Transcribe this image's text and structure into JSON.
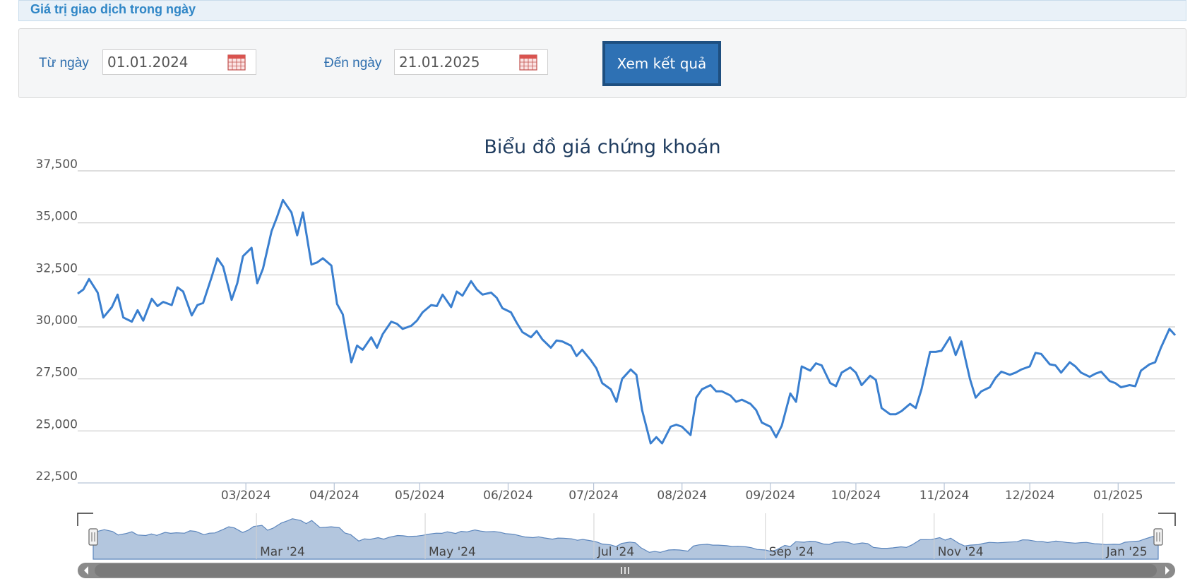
{
  "header": {
    "title": "Giá trị giao dịch trong ngày"
  },
  "filter": {
    "from_label": "Từ ngày",
    "from_value": "01.01.2024",
    "to_label": "Đến ngày",
    "to_value": "21.01.2025",
    "submit_label": "Xem kết quả"
  },
  "colors": {
    "line": "#3a7fcf",
    "navigator_fill": "#b3c6de",
    "accent": "#2e71b4"
  },
  "navigator": {
    "labels": [
      "Mar '24",
      "May '24",
      "Jul '24",
      "Sep '24",
      "Nov '24",
      "Jan '25"
    ]
  },
  "chart_data": {
    "type": "line",
    "title": "Biểu đồ giá chứng khoán",
    "xlabel": "",
    "ylabel": "",
    "ylim": [
      22500,
      37500
    ],
    "xlim": [
      "2024-01-02",
      "2025-01-21"
    ],
    "y_ticks": [
      "22,500",
      "25,000",
      "27,500",
      "30,000",
      "32,500",
      "35,000",
      "37,500"
    ],
    "x_ticks": [
      {
        "date": "2024-03-01",
        "label": "03/2024"
      },
      {
        "date": "2024-04-01",
        "label": "04/2024"
      },
      {
        "date": "2024-05-01",
        "label": "05/2024"
      },
      {
        "date": "2024-06-01",
        "label": "06/2024"
      },
      {
        "date": "2024-07-01",
        "label": "07/2024"
      },
      {
        "date": "2024-08-01",
        "label": "08/2024"
      },
      {
        "date": "2024-09-01",
        "label": "09/2024"
      },
      {
        "date": "2024-10-01",
        "label": "10/2024"
      },
      {
        "date": "2024-11-01",
        "label": "11/2024"
      },
      {
        "date": "2024-12-01",
        "label": "12/2024"
      },
      {
        "date": "2025-01-01",
        "label": "01/2025"
      }
    ],
    "grid": true,
    "legend": "none",
    "x": [
      "2024-01-02",
      "2024-01-04",
      "2024-01-06",
      "2024-01-09",
      "2024-01-11",
      "2024-01-14",
      "2024-01-16",
      "2024-01-18",
      "2024-01-21",
      "2024-01-23",
      "2024-01-25",
      "2024-01-28",
      "2024-01-30",
      "2024-02-01",
      "2024-02-04",
      "2024-02-06",
      "2024-02-08",
      "2024-02-11",
      "2024-02-13",
      "2024-02-15",
      "2024-02-18",
      "2024-02-20",
      "2024-02-22",
      "2024-02-25",
      "2024-02-27",
      "2024-02-29",
      "2024-03-03",
      "2024-03-05",
      "2024-03-07",
      "2024-03-10",
      "2024-03-12",
      "2024-03-14",
      "2024-03-17",
      "2024-03-19",
      "2024-03-21",
      "2024-03-24",
      "2024-03-26",
      "2024-03-28",
      "2024-03-31",
      "2024-04-02",
      "2024-04-04",
      "2024-04-07",
      "2024-04-09",
      "2024-04-11",
      "2024-04-14",
      "2024-04-16",
      "2024-04-18",
      "2024-04-21",
      "2024-04-23",
      "2024-04-25",
      "2024-04-28",
      "2024-04-30",
      "2024-05-02",
      "2024-05-05",
      "2024-05-07",
      "2024-05-09",
      "2024-05-12",
      "2024-05-14",
      "2024-05-16",
      "2024-05-19",
      "2024-05-21",
      "2024-05-23",
      "2024-05-26",
      "2024-05-28",
      "2024-05-30",
      "2024-06-02",
      "2024-06-04",
      "2024-06-06",
      "2024-06-09",
      "2024-06-11",
      "2024-06-13",
      "2024-06-16",
      "2024-06-18",
      "2024-06-20",
      "2024-06-23",
      "2024-06-25",
      "2024-06-27",
      "2024-06-30",
      "2024-07-02",
      "2024-07-04",
      "2024-07-07",
      "2024-07-09",
      "2024-07-11",
      "2024-07-14",
      "2024-07-16",
      "2024-07-18",
      "2024-07-21",
      "2024-07-23",
      "2024-07-25",
      "2024-07-28",
      "2024-07-30",
      "2024-08-01",
      "2024-08-04",
      "2024-08-06",
      "2024-08-08",
      "2024-08-11",
      "2024-08-13",
      "2024-08-15",
      "2024-08-18",
      "2024-08-20",
      "2024-08-22",
      "2024-08-25",
      "2024-08-27",
      "2024-08-29",
      "2024-09-01",
      "2024-09-03",
      "2024-09-05",
      "2024-09-08",
      "2024-09-10",
      "2024-09-12",
      "2024-09-15",
      "2024-09-17",
      "2024-09-19",
      "2024-09-22",
      "2024-09-24",
      "2024-09-26",
      "2024-09-29",
      "2024-10-01",
      "2024-10-03",
      "2024-10-06",
      "2024-10-08",
      "2024-10-10",
      "2024-10-13",
      "2024-10-15",
      "2024-10-17",
      "2024-10-20",
      "2024-10-22",
      "2024-10-24",
      "2024-10-27",
      "2024-10-29",
      "2024-10-31",
      "2024-11-03",
      "2024-11-05",
      "2024-11-07",
      "2024-11-10",
      "2024-11-12",
      "2024-11-14",
      "2024-11-17",
      "2024-11-19",
      "2024-11-21",
      "2024-11-24",
      "2024-11-26",
      "2024-11-28",
      "2024-12-01",
      "2024-12-03",
      "2024-12-05",
      "2024-12-08",
      "2024-12-10",
      "2024-12-12",
      "2024-12-15",
      "2024-12-17",
      "2024-12-19",
      "2024-12-22",
      "2024-12-24",
      "2024-12-26",
      "2024-12-29",
      "2024-12-31",
      "2025-01-02",
      "2025-01-05",
      "2025-01-07",
      "2025-01-09",
      "2025-01-12",
      "2025-01-14",
      "2025-01-16",
      "2025-01-19",
      "2025-01-21"
    ],
    "series": [
      {
        "values": [
          31600,
          31800,
          32300,
          31650,
          30450,
          30950,
          31550,
          30450,
          30250,
          30800,
          30300,
          31350,
          31000,
          31200,
          31050,
          31900,
          31700,
          30550,
          31050,
          31150,
          32400,
          33300,
          32900,
          31300,
          32100,
          33400,
          33800,
          32100,
          32800,
          34600,
          35300,
          36100,
          35500,
          34400,
          35500,
          33000,
          33100,
          33300,
          32950,
          31100,
          30600,
          28300,
          29100,
          28900,
          29500,
          29000,
          29650,
          30250,
          30150,
          29900,
          30050,
          30300,
          30700,
          31050,
          31000,
          31550,
          30950,
          31700,
          31500,
          32200,
          31800,
          31550,
          31650,
          31400,
          30900,
          30700,
          30200,
          29750,
          29500,
          29800,
          29400,
          29000,
          29350,
          29300,
          29100,
          28600,
          28900,
          28400,
          28000,
          27300,
          27000,
          26400,
          27500,
          27950,
          27700,
          26000,
          24400,
          24700,
          24400,
          25200,
          25300,
          25200,
          24800,
          26600,
          27000,
          27200,
          26900,
          26900,
          26700,
          26400,
          26500,
          26300,
          26000,
          25400,
          25200,
          24700,
          25250,
          26800,
          26400,
          28100,
          27900,
          28250,
          28150,
          27300,
          27150,
          27800,
          28050,
          27800,
          27200,
          27650,
          27450,
          26100,
          25800,
          25800,
          25950,
          26300,
          26100,
          27000,
          28800,
          28800,
          28850,
          29500,
          28650,
          29300,
          27500,
          26600,
          26900,
          27100,
          27550,
          27850,
          27700,
          27800,
          27950,
          28100,
          28750,
          28700,
          28200,
          28150,
          27800,
          28300,
          28100,
          27800,
          27600,
          27750,
          27850,
          27400,
          27300,
          27100,
          27200,
          27150,
          27900,
          28200,
          28300,
          29000,
          29900,
          29600
        ]
      }
    ]
  }
}
